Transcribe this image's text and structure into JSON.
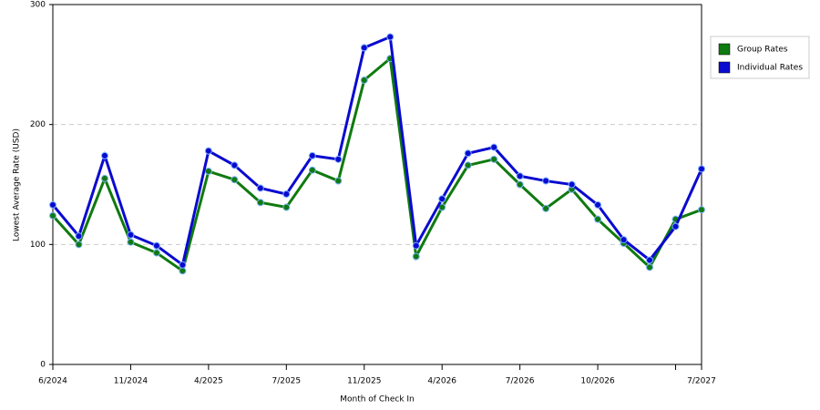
{
  "chart_data": {
    "type": "line",
    "xlabel": "Month of Check In",
    "ylabel": "Lowest Average Rate (USD)",
    "categories": [
      "6/2024",
      null,
      null,
      "11/2024",
      null,
      null,
      "4/2025",
      null,
      null,
      "7/2025",
      null,
      null,
      "11/2025",
      null,
      null,
      "4/2026",
      null,
      null,
      "7/2026",
      null,
      null,
      "10/2026",
      null,
      null,
      null,
      "7/2027"
    ],
    "series": [
      {
        "name": "Group Rates",
        "color": "#0f7a0f",
        "values": [
          124,
          100,
          155,
          102,
          93,
          78,
          161,
          154,
          135,
          131,
          162,
          153,
          237,
          255,
          90,
          131,
          166,
          171,
          150,
          130,
          146,
          121,
          101,
          81,
          121,
          129
        ]
      },
      {
        "name": "Individual Rates",
        "color": "#0a0ad0",
        "values": [
          133,
          107,
          174,
          108,
          99,
          83,
          178,
          166,
          147,
          142,
          174,
          171,
          264,
          273,
          99,
          138,
          176,
          181,
          157,
          153,
          150,
          133,
          104,
          87,
          115,
          163
        ]
      }
    ],
    "ylim": [
      0,
      300
    ],
    "yticks": [
      0,
      100,
      200,
      300
    ],
    "grid": true,
    "legend": "right"
  }
}
